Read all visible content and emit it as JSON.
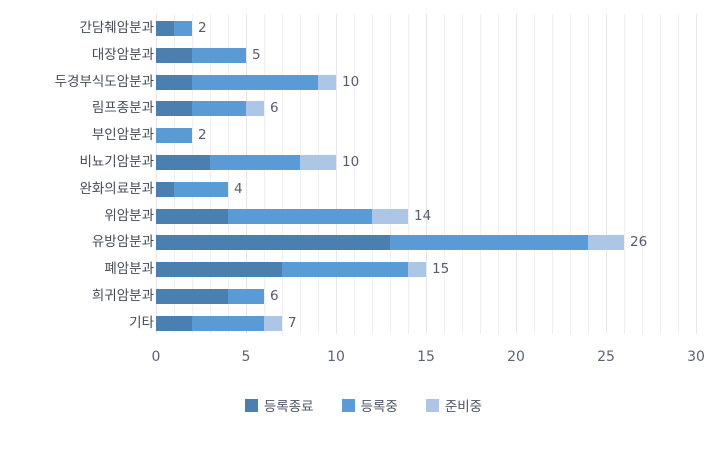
{
  "chart_data": {
    "type": "bar",
    "orientation": "horizontal",
    "stacked": true,
    "title": "",
    "xlabel": "",
    "ylabel": "",
    "xlim": [
      0,
      30
    ],
    "x_ticks": [
      0,
      5,
      10,
      15,
      20,
      25,
      30
    ],
    "grid": true,
    "legend_position": "bottom",
    "categories": [
      "간담췌암분과",
      "대장암분과",
      "두경부식도암분과",
      "림프종분과",
      "부인암분과",
      "비뇨기암분과",
      "완화의료분과",
      "위암분과",
      "유방암분과",
      "폐암분과",
      "희귀암분과",
      "기타"
    ],
    "series": [
      {
        "name": "등록종료",
        "color": "#4a7fb0",
        "values": [
          1,
          2,
          2,
          2,
          0,
          3,
          1,
          4,
          13,
          7,
          4,
          2
        ]
      },
      {
        "name": "등록중",
        "color": "#5b9bd5",
        "values": [
          1,
          3,
          7,
          3,
          2,
          5,
          3,
          8,
          11,
          7,
          2,
          4
        ]
      },
      {
        "name": "준비중",
        "color": "#adc6e6",
        "values": [
          0,
          0,
          1,
          1,
          0,
          2,
          0,
          2,
          2,
          1,
          0,
          1
        ]
      }
    ],
    "totals": [
      2,
      5,
      10,
      6,
      2,
      10,
      4,
      14,
      26,
      15,
      6,
      7
    ]
  },
  "legend": [
    {
      "label": "등록종료",
      "color": "#4a7fb0"
    },
    {
      "label": "등록중",
      "color": "#5b9bd5"
    },
    {
      "label": "준비중",
      "color": "#adc6e6"
    }
  ]
}
